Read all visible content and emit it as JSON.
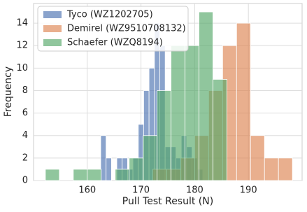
{
  "chart_data": {
    "type": "histogram",
    "xlabel": "Pull Test Result (N)",
    "ylabel": "Frequency",
    "xlim": [
      150,
      200
    ],
    "ylim": [
      0,
      15.75
    ],
    "xticks": [
      160,
      170,
      180,
      190
    ],
    "yticks": [
      0,
      2,
      4,
      6,
      8,
      10,
      12,
      14
    ],
    "grid": true,
    "legend": "upper left",
    "opacity": 0.65,
    "series": [
      {
        "name": "Tyco (WZ1202705)",
        "color": "#4c72b0",
        "bins": [
          162.5,
          163.5,
          164.5,
          165.5,
          166.5,
          167.5,
          168.5,
          169.5,
          170.5,
          171.5,
          172.5,
          173.5,
          174.5,
          175.5,
          176.5,
          177.5,
          178.5,
          179.5,
          180.5,
          181.5
        ],
        "values": [
          4,
          2,
          0,
          2,
          2,
          1,
          2,
          5,
          8,
          10,
          14,
          12,
          3,
          3,
          2,
          4,
          3,
          2,
          1
        ]
      },
      {
        "name": "Demirel (WZ9510708132)",
        "color": "#dd8452",
        "bins": [
          172.2,
          174.8,
          177.4,
          180.0,
          182.6,
          185.2,
          187.8,
          190.4,
          193.0,
          195.6,
          198.2
        ],
        "values": [
          1,
          1,
          2,
          4,
          8,
          12,
          14,
          4,
          2,
          2
        ]
      },
      {
        "name": "Schaefer (WZQ8194)",
        "color": "#55a868",
        "bins": [
          152.2,
          154.8,
          157.4,
          160.0,
          162.6,
          165.2,
          167.8,
          170.4,
          173.0,
          175.6,
          178.2,
          180.8,
          183.4,
          186.0
        ],
        "values": [
          1,
          0,
          1,
          1,
          0,
          1,
          2,
          4,
          8,
          12,
          12,
          15,
          9
        ]
      }
    ]
  }
}
